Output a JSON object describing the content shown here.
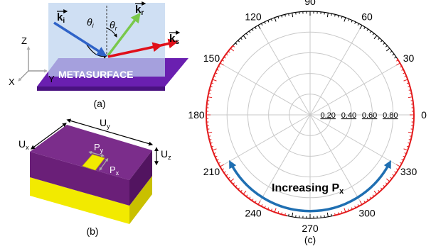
{
  "panel_a": {
    "caption": "(a)",
    "axis_z": "Z",
    "axis_x": "X",
    "axis_y": "Y",
    "theta_i": "θ",
    "theta_i_sub": "i",
    "theta_r": "θ",
    "theta_r_sub": "r",
    "k_i": "k",
    "k_i_sub": "i",
    "k_r": "k",
    "k_r_sub": "r",
    "k_s": "k",
    "k_s_sub": "s",
    "surface_label": "METASURFACE"
  },
  "panel_b": {
    "caption": "(b)",
    "ux": "U",
    "ux_sub": "x",
    "uy": "U",
    "uy_sub": "y",
    "uz": "U",
    "uz_sub": "z",
    "px": "P",
    "px_sub": "x",
    "py": "P",
    "py_sub": "y",
    "top_color": "#7a2a8a",
    "base_color": "#f2ea00"
  },
  "panel_c": {
    "caption": "(c)",
    "angle_labels": [
      "0",
      "30",
      "60",
      "90",
      "120",
      "150",
      "180",
      "210",
      "240",
      "270",
      "300",
      "330"
    ],
    "radial_labels": [
      "0.20",
      "0.40",
      "0.60",
      "0.80"
    ],
    "arrow_label": "Increasing P",
    "arrow_label_sub": "x",
    "highlight_color": "#e31a1c",
    "arrow_color": "#1f6fb2",
    "highlight_ranges_deg": [
      [
        -77,
        33
      ],
      [
        138,
        257
      ]
    ]
  }
}
